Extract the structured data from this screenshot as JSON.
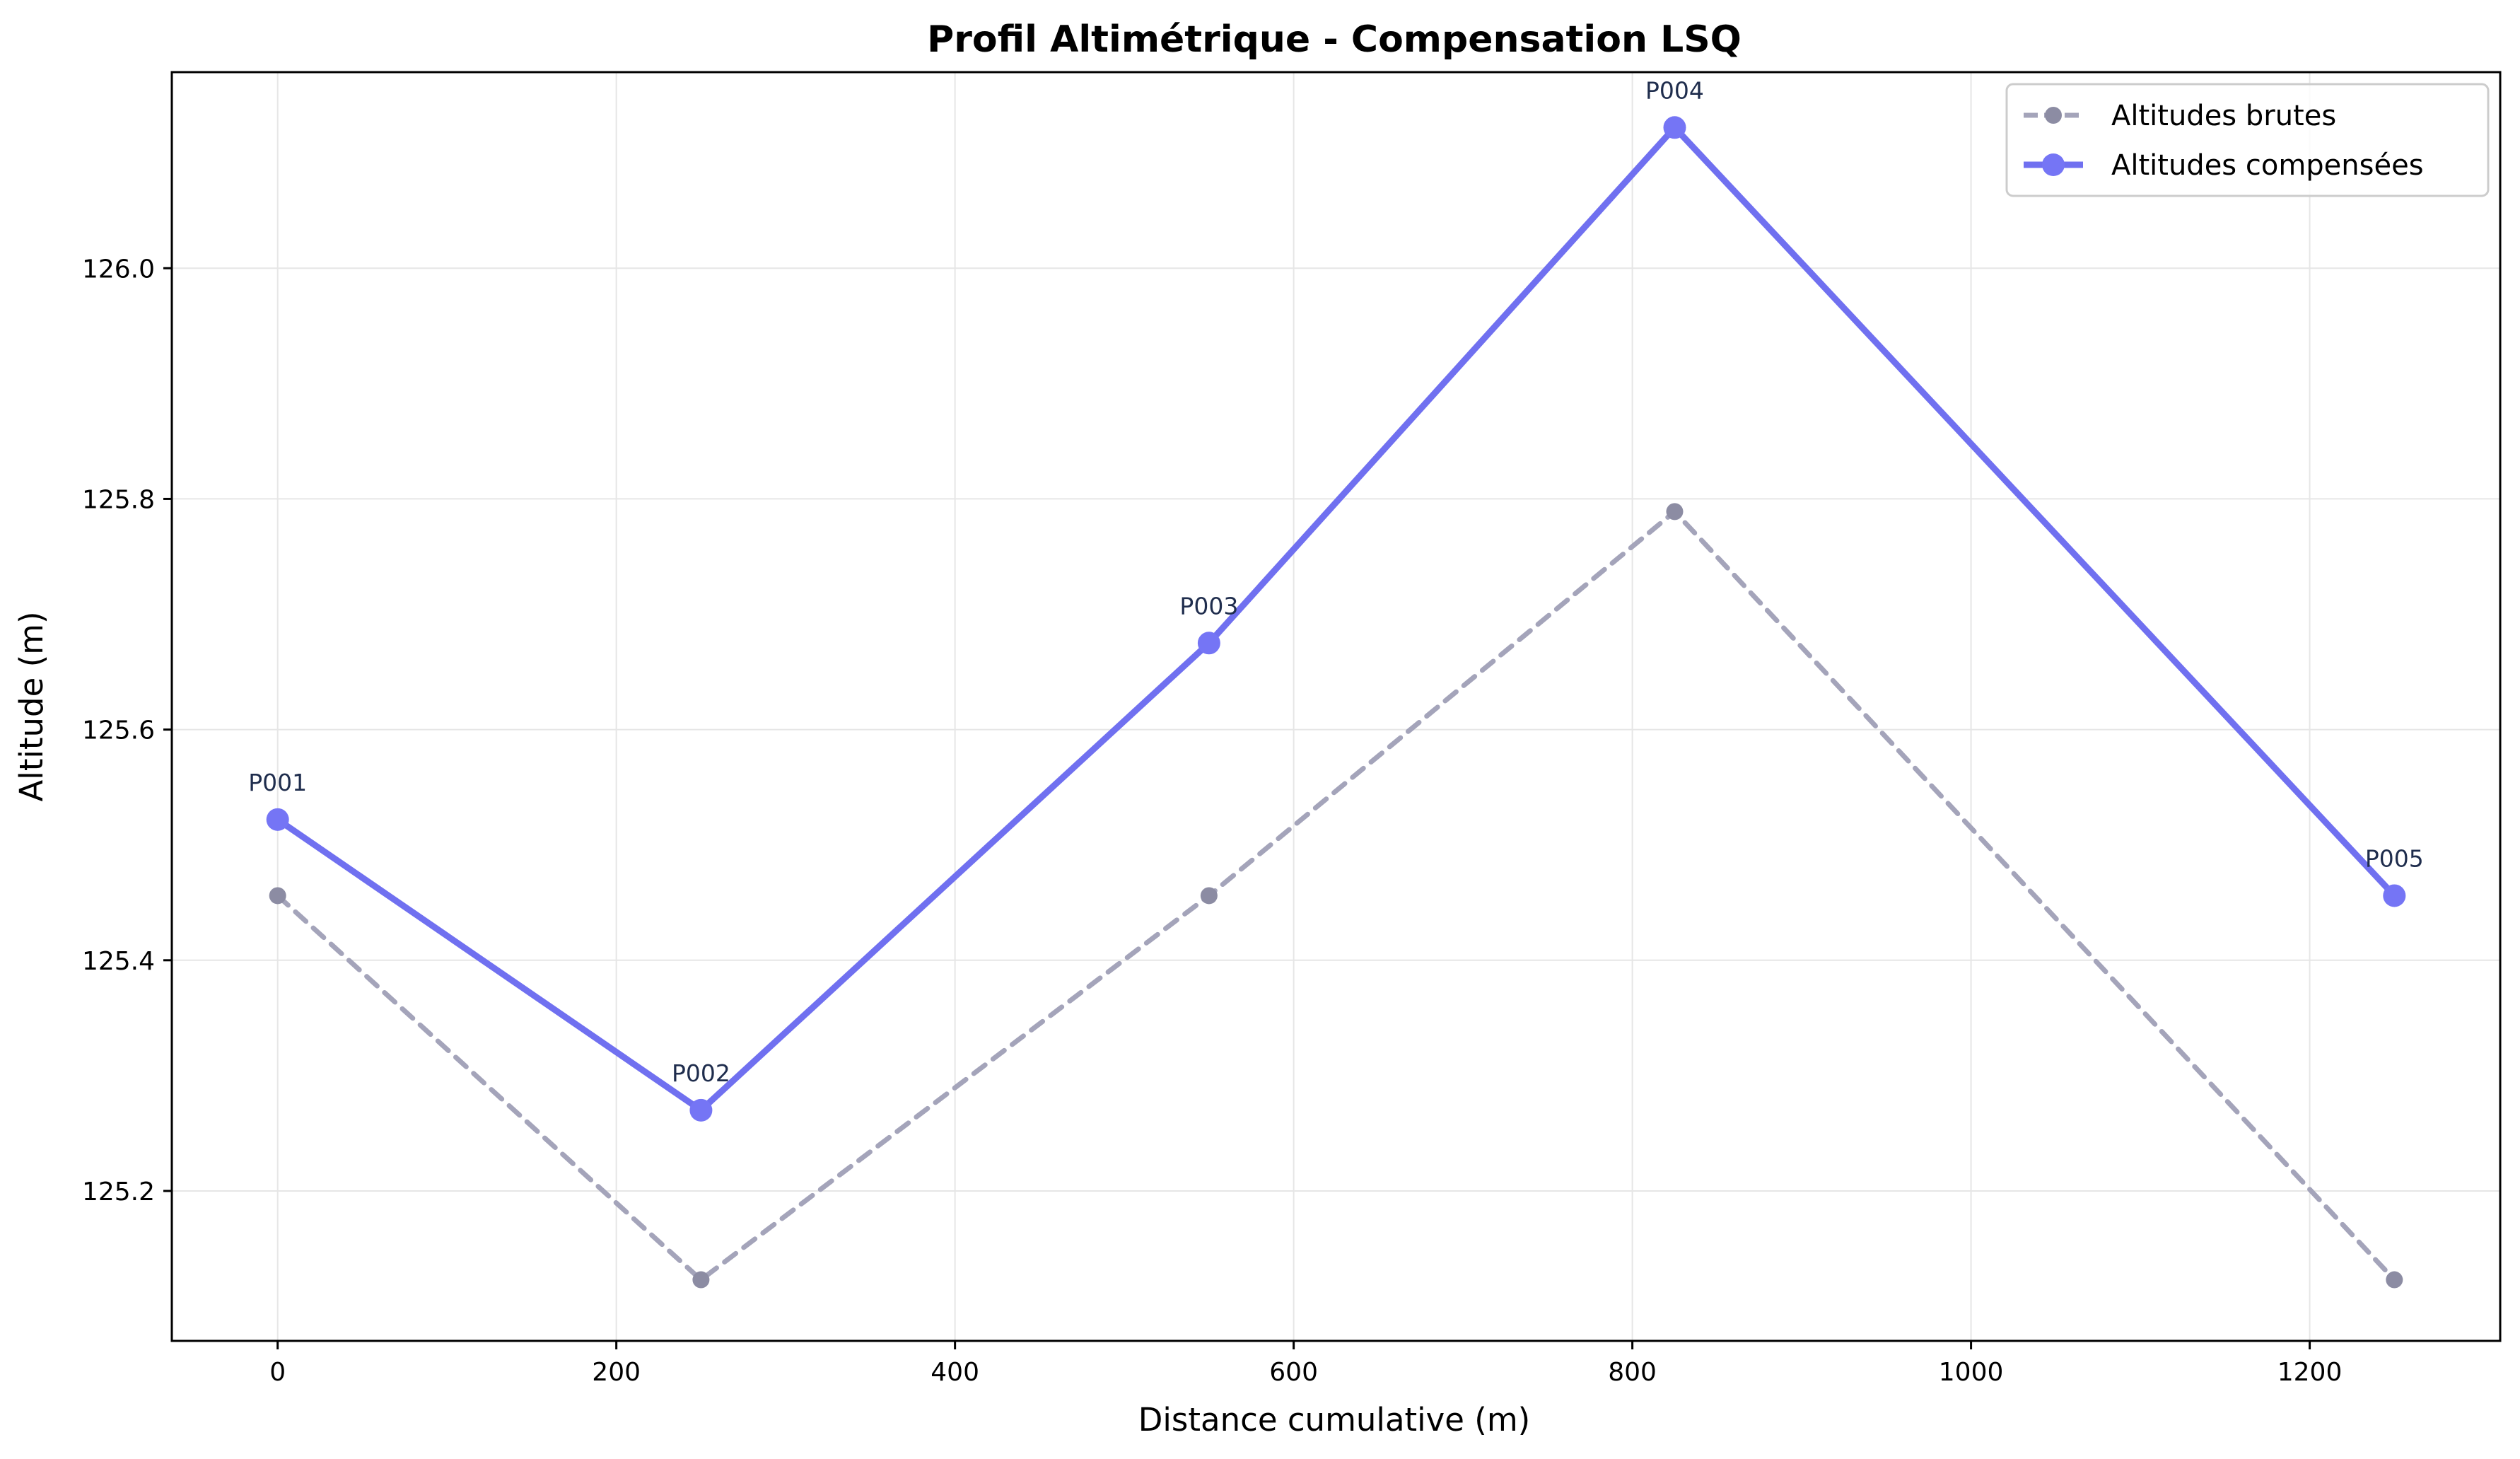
{
  "chart_data": {
    "type": "line",
    "title": "Profil Altimétrique - Compensation LSQ",
    "xlabel": "Distance cumulative (m)",
    "ylabel": "Altitude (m)",
    "xlim": [
      -62.5,
      1312.5
    ],
    "ylim": [
      25.0,
      126.17
    ],
    "x_ticks": [
      0,
      200,
      400,
      600,
      800,
      1000,
      1200
    ],
    "x_tick_labels": [
      "0",
      "200",
      "400",
      "600",
      "800",
      "1000",
      "1200"
    ],
    "y_ticks": [
      125.2,
      125.4,
      125.6,
      125.8,
      126.0
    ],
    "y_tick_labels": [
      "125.2",
      "125.4",
      "125.6",
      "125.8",
      "126.0"
    ],
    "grid": true,
    "legend_position": "top-right",
    "x": [
      0,
      250,
      550,
      825,
      1250
    ],
    "point_labels": [
      "P001",
      "P002",
      "P003",
      "P004",
      "P005"
    ],
    "series": [
      {
        "name": "Altitudes brutes",
        "values": [
          125.456,
          125.123,
          125.456,
          125.789,
          125.123
        ],
        "color": "#a4a4ba",
        "style": "dashed",
        "marker_color": "#8c8ca3"
      },
      {
        "name": "Altitudes compensées",
        "values": [
          125.522,
          125.27,
          125.675,
          126.122,
          125.456
        ],
        "color": "#7070f0",
        "style": "solid",
        "marker_color": "#7575f5"
      }
    ]
  }
}
